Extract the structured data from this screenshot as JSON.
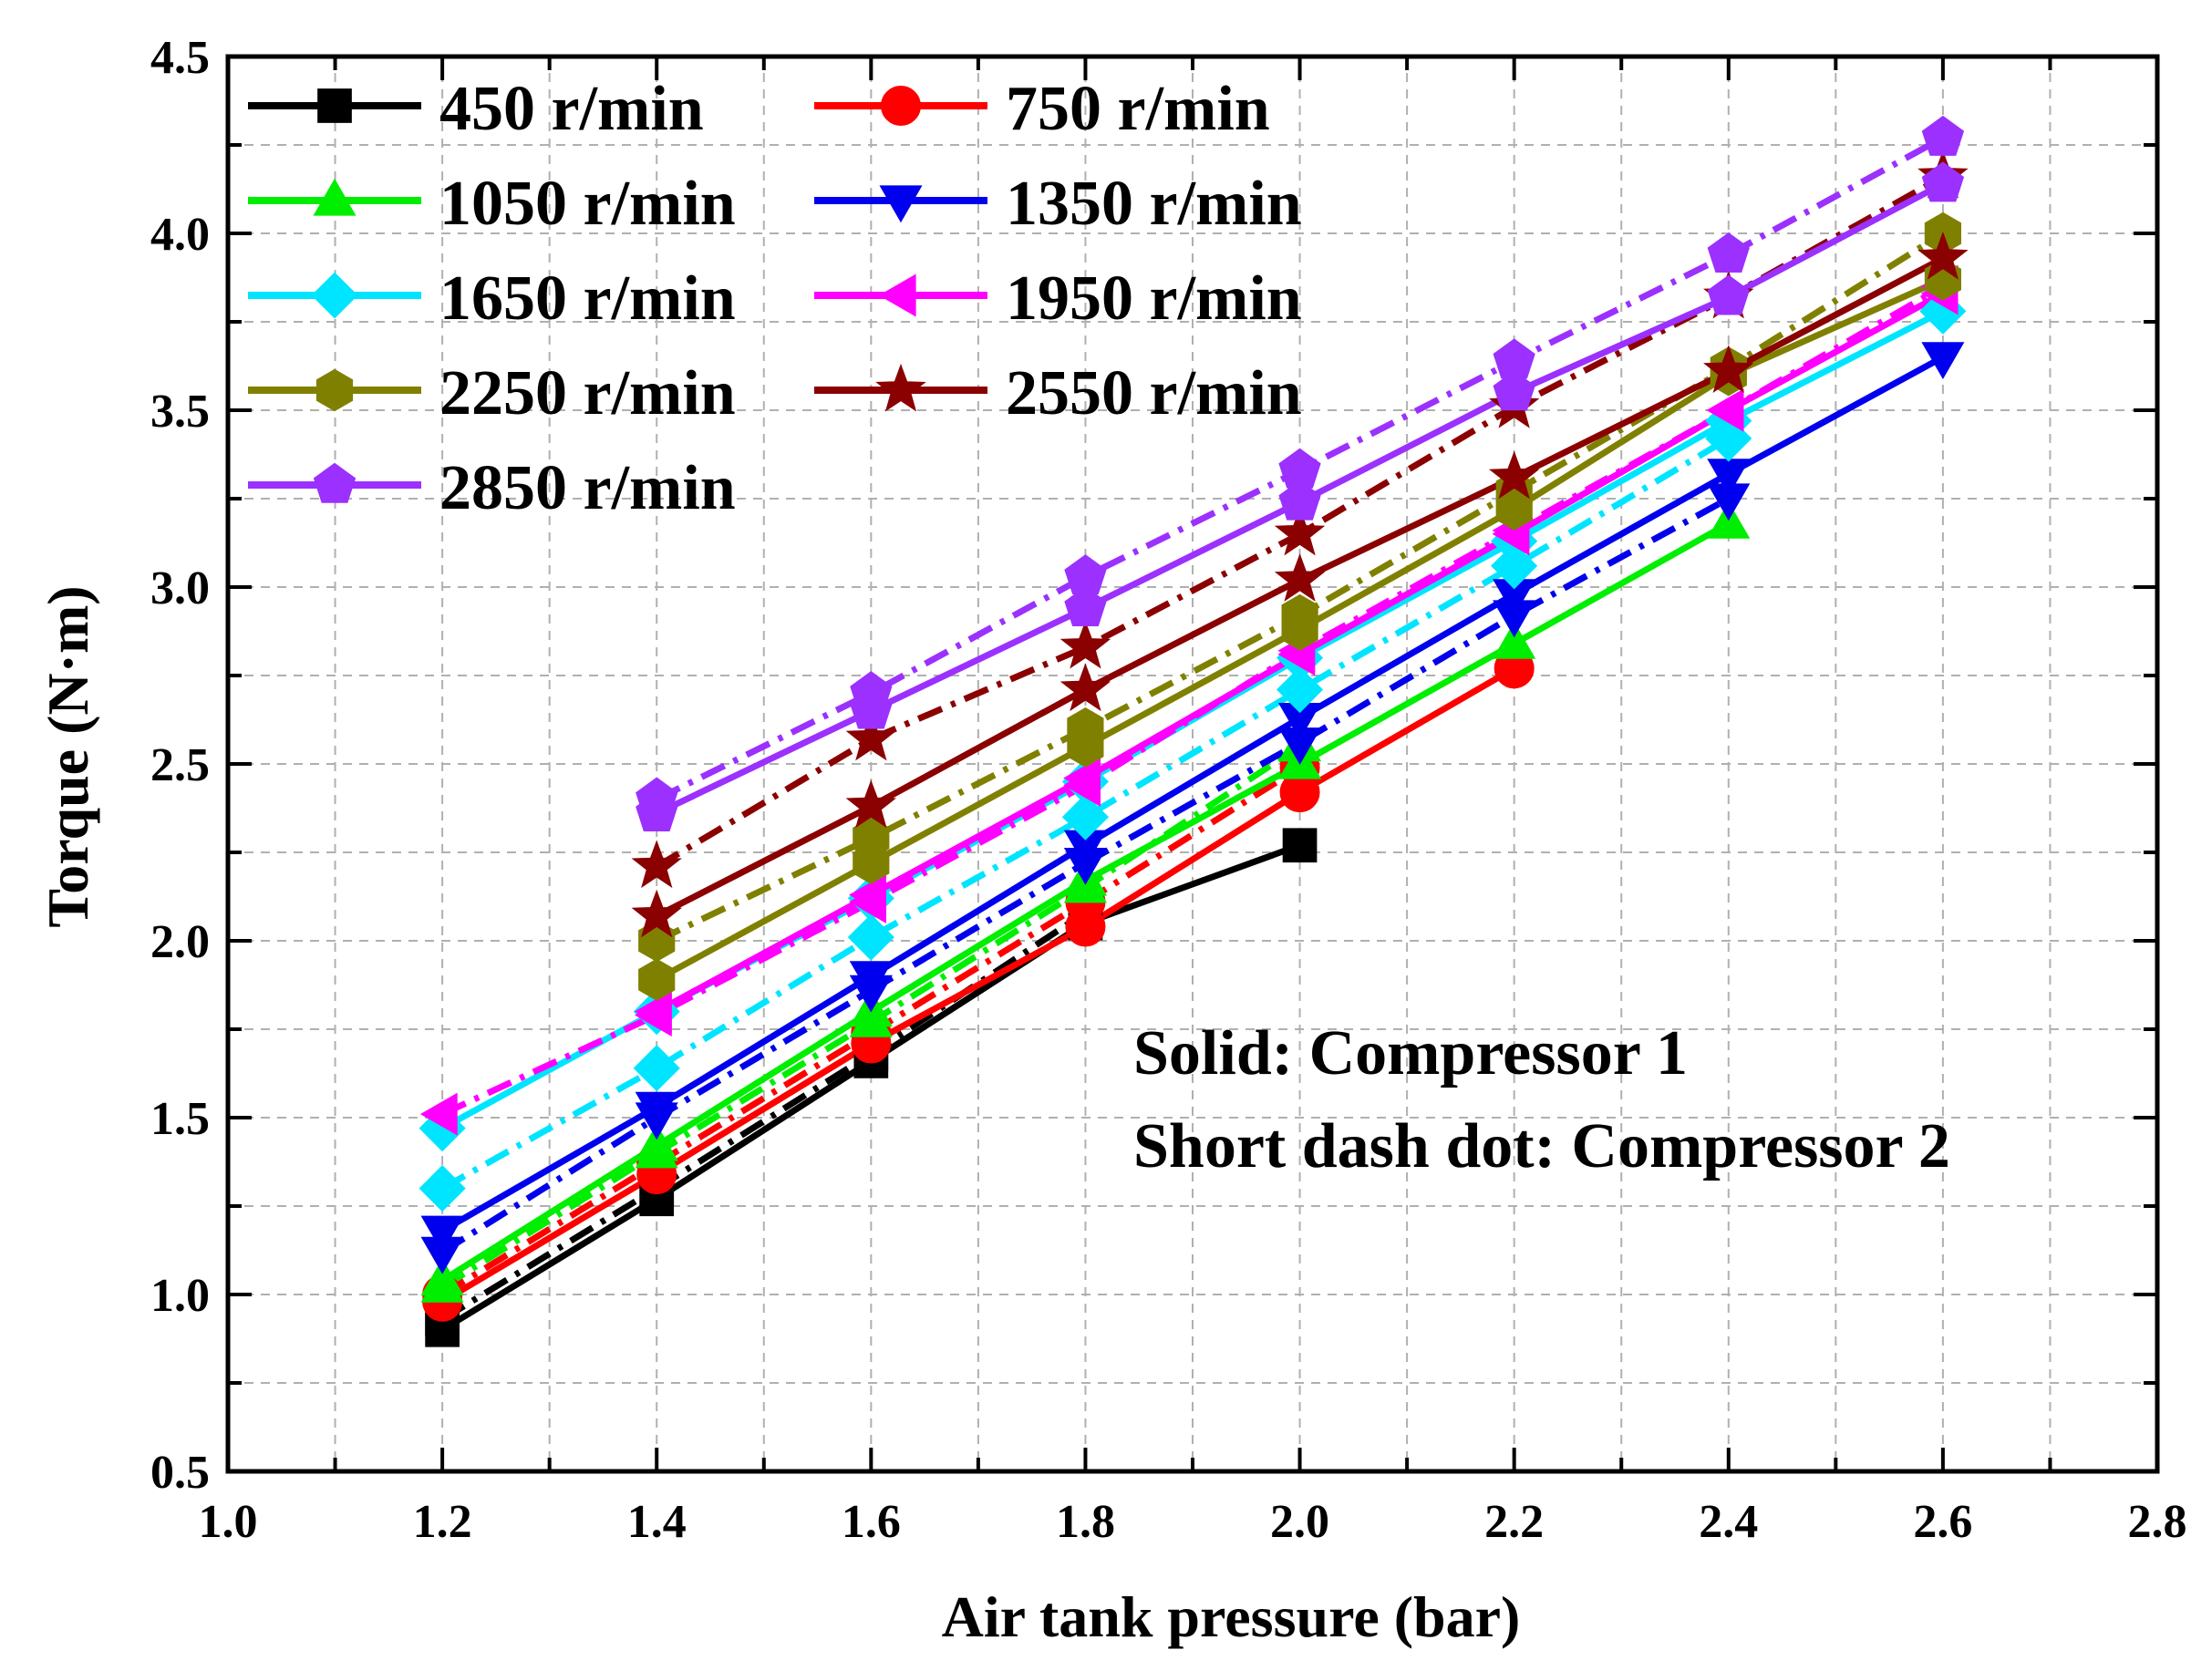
{
  "chart_data": {
    "type": "line",
    "title": "",
    "xlabel": "Air tank pressure (bar)",
    "ylabel": "Torque (N·m)",
    "xlim": [
      1.0,
      2.8
    ],
    "ylim": [
      0.5,
      4.5
    ],
    "xticks": [
      "1.0",
      "1.2",
      "1.4",
      "1.6",
      "1.8",
      "2.0",
      "2.2",
      "2.4",
      "2.6",
      "2.8"
    ],
    "yticks": [
      "0.5",
      "1.0",
      "1.5",
      "2.0",
      "2.5",
      "3.0",
      "3.5",
      "4.0",
      "4.5"
    ],
    "grid": true,
    "legend_position": "top-left",
    "annotations": [
      "Solid: Compressor 1",
      "Short dash dot: Compressor 2"
    ],
    "line_styles": {
      "solid": "Compressor 1",
      "short-dash-dot": "Compressor 2"
    },
    "series": [
      {
        "name": "450 r/min",
        "color": "#000000",
        "marker": "square",
        "comp1": {
          "x": [
            1.2,
            1.4,
            1.6,
            1.8,
            2.0
          ],
          "y": [
            0.9,
            1.27,
            1.66,
            2.05,
            2.27
          ]
        },
        "comp2": {
          "x": [
            1.2,
            1.4,
            1.6,
            1.8
          ],
          "y": [
            0.93,
            1.3,
            1.68,
            2.08
          ]
        }
      },
      {
        "name": "750 r/min",
        "color": "#ff0000",
        "marker": "circle",
        "comp1": {
          "x": [
            1.2,
            1.4,
            1.6,
            1.8,
            2.0,
            2.2
          ],
          "y": [
            0.98,
            1.34,
            1.71,
            2.04,
            2.42,
            2.77
          ]
        },
        "comp2": {
          "x": [
            1.2,
            1.4,
            1.6,
            1.8,
            2.0
          ],
          "y": [
            1.0,
            1.37,
            1.74,
            2.11,
            2.49
          ]
        }
      },
      {
        "name": "1050 r/min",
        "color": "#00ee00",
        "marker": "triangle-up",
        "comp1": {
          "x": [
            1.2,
            1.4,
            1.6,
            1.8,
            2.0,
            2.2,
            2.4
          ],
          "y": [
            1.04,
            1.42,
            1.8,
            2.17,
            2.5,
            2.84,
            3.18
          ]
        },
        "comp2": {
          "x": [
            1.2,
            1.4,
            1.6,
            1.8,
            2.0
          ],
          "y": [
            1.02,
            1.4,
            1.77,
            2.15,
            2.55
          ]
        }
      },
      {
        "name": "1350 r/min",
        "color": "#0000ee",
        "marker": "triangle-down",
        "comp1": {
          "x": [
            1.2,
            1.4,
            1.6,
            1.8,
            2.0,
            2.2,
            2.4,
            2.6
          ],
          "y": [
            1.18,
            1.53,
            1.9,
            2.27,
            2.63,
            2.98,
            3.32,
            3.65
          ]
        },
        "comp2": {
          "x": [
            1.2,
            1.4,
            1.6,
            1.8,
            2.0,
            2.2,
            2.4
          ],
          "y": [
            1.12,
            1.5,
            1.86,
            2.22,
            2.56,
            2.92,
            3.25
          ]
        }
      },
      {
        "name": "1650 r/min",
        "color": "#00e5ff",
        "marker": "diamond",
        "comp1": {
          "x": [
            1.2,
            1.4,
            1.6,
            1.8,
            2.0,
            2.2,
            2.4,
            2.6
          ],
          "y": [
            1.47,
            1.8,
            2.12,
            2.45,
            2.8,
            3.13,
            3.47,
            3.78
          ]
        },
        "comp2": {
          "x": [
            1.2,
            1.4,
            1.6,
            1.8,
            2.0,
            2.2,
            2.4
          ],
          "y": [
            1.3,
            1.64,
            2.01,
            2.35,
            2.71,
            3.06,
            3.42
          ]
        }
      },
      {
        "name": "1950 r/min",
        "color": "#ff00ff",
        "marker": "triangle-left",
        "comp1": {
          "x": [
            1.4,
            1.6,
            1.8,
            2.0,
            2.2,
            2.4,
            2.6
          ],
          "y": [
            1.8,
            2.13,
            2.46,
            2.81,
            3.15,
            3.5,
            3.83
          ]
        },
        "comp2": {
          "x": [
            1.2,
            1.4,
            1.6,
            1.8,
            2.0,
            2.2,
            2.4,
            2.6
          ],
          "y": [
            1.51,
            1.79,
            2.11,
            2.44,
            2.82,
            3.16,
            3.5,
            3.85
          ]
        }
      },
      {
        "name": "2250 r/min",
        "color": "#808000",
        "marker": "hexagon",
        "comp1": {
          "x": [
            1.4,
            1.6,
            1.8,
            2.0,
            2.2,
            2.4,
            2.6
          ],
          "y": [
            1.89,
            2.22,
            2.55,
            2.88,
            3.22,
            3.6,
            3.87
          ]
        },
        "comp2": {
          "x": [
            1.4,
            1.6,
            1.8,
            2.0,
            2.2,
            2.4,
            2.6
          ],
          "y": [
            2.0,
            2.29,
            2.6,
            2.92,
            3.27,
            3.62,
            4.0
          ]
        }
      },
      {
        "name": "2550 r/min",
        "color": "#8b0000",
        "marker": "star",
        "comp1": {
          "x": [
            1.4,
            1.6,
            1.8,
            2.0,
            2.2,
            2.4,
            2.6
          ],
          "y": [
            2.07,
            2.38,
            2.71,
            3.02,
            3.31,
            3.61,
            3.93
          ]
        },
        "comp2": {
          "x": [
            1.4,
            1.6,
            1.8,
            2.0,
            2.2,
            2.4,
            2.6
          ],
          "y": [
            2.21,
            2.57,
            2.83,
            3.15,
            3.51,
            3.82,
            4.16
          ]
        }
      },
      {
        "name": "2850 r/min",
        "color": "#9b30ff",
        "marker": "pentagon",
        "comp1": {
          "x": [
            1.4,
            1.6,
            1.8,
            2.0,
            2.2,
            2.4,
            2.6
          ],
          "y": [
            2.36,
            2.65,
            2.94,
            3.24,
            3.55,
            3.82,
            4.14
          ]
        },
        "comp2": {
          "x": [
            1.4,
            1.6,
            1.8,
            2.0,
            2.2,
            2.4,
            2.6
          ],
          "y": [
            2.4,
            2.7,
            3.03,
            3.33,
            3.64,
            3.94,
            4.27
          ]
        }
      }
    ]
  }
}
